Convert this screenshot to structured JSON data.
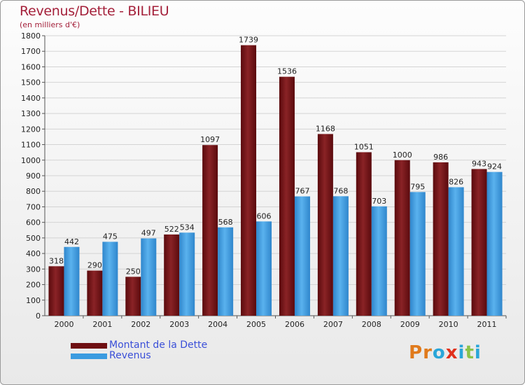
{
  "title": "Revenus/Dette - BILIEU",
  "subtitle": "(en milliers d'€)",
  "colors": {
    "debt": "#6e0f12",
    "revenue": "#3b9be0"
  },
  "legend": [
    {
      "label": "Montant de la Dette",
      "color": "#6e0f12"
    },
    {
      "label": "Revenus",
      "color": "#3b9be0"
    }
  ],
  "logo": {
    "text": "Proxiti",
    "letter_colors": [
      "#e07a1c",
      "#e07a1c",
      "#2aa6d8",
      "#e0301c",
      "#2aa6d8",
      "#8bc34a",
      "#2aa6d8"
    ]
  },
  "chart_data": {
    "type": "bar",
    "title": "Revenus/Dette - BILIEU",
    "subtitle": "(en milliers d'€)",
    "categories": [
      "2000",
      "2001",
      "2002",
      "2003",
      "2004",
      "2005",
      "2006",
      "2007",
      "2008",
      "2009",
      "2010",
      "2011"
    ],
    "series": [
      {
        "name": "Montant de la Dette",
        "values": [
          318,
          290,
          250,
          522,
          1097,
          1739,
          1536,
          1168,
          1051,
          1000,
          986,
          943
        ]
      },
      {
        "name": "Revenus",
        "values": [
          442,
          475,
          497,
          534,
          568,
          606,
          767,
          768,
          703,
          795,
          826,
          924
        ]
      }
    ],
    "ylim": [
      0,
      1800
    ],
    "yticks": [
      0,
      100,
      200,
      300,
      400,
      500,
      600,
      700,
      800,
      900,
      1000,
      1100,
      1200,
      1300,
      1400,
      1500,
      1600,
      1700,
      1800
    ],
    "grid": true,
    "legend_position": "bottom-left"
  }
}
